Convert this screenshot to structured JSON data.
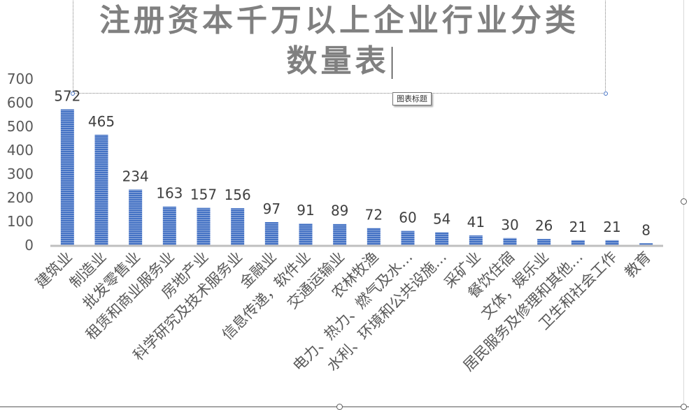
{
  "chart_data": {
    "type": "bar",
    "title": "注册资本千万以上企业行业分类数量表",
    "title_lines": [
      "注册资本千万以上企业行业分类",
      "数量表"
    ],
    "categories": [
      "建筑业",
      "制造业",
      "批发零售业",
      "租赁和商业服务业",
      "房地产业",
      "科学研究及技术服务业",
      "金融业",
      "信息传递，软件业",
      "交通运输业",
      "农林牧渔",
      "电力、热力、燃气及水…",
      "水利、环境和公共设施…",
      "采矿业",
      "餐饮住宿",
      "文体，娱乐业",
      "居民服务及修理和其他…",
      "卫生和社会工作",
      "教育"
    ],
    "values": [
      572,
      465,
      234,
      163,
      157,
      156,
      97,
      91,
      89,
      72,
      60,
      54,
      41,
      30,
      26,
      21,
      21,
      8
    ],
    "data_labels": [
      "572",
      "465",
      "234",
      "163",
      "157",
      "156",
      "97",
      "91",
      "89",
      "72",
      "60",
      "54",
      "41",
      "30",
      "26",
      "21",
      "21",
      "8"
    ],
    "ylim": [
      0,
      700
    ],
    "yticks": [
      "0",
      "100",
      "200",
      "300",
      "400",
      "500",
      "600",
      "700"
    ],
    "xlabel": "",
    "ylabel": "",
    "grid": false,
    "legend": "none",
    "bar_color": "#4472c4",
    "axis_color": "#bfbfbf",
    "text_color": "#595959",
    "title_color": "#808080"
  },
  "tooltip": {
    "text": "图表标题"
  }
}
